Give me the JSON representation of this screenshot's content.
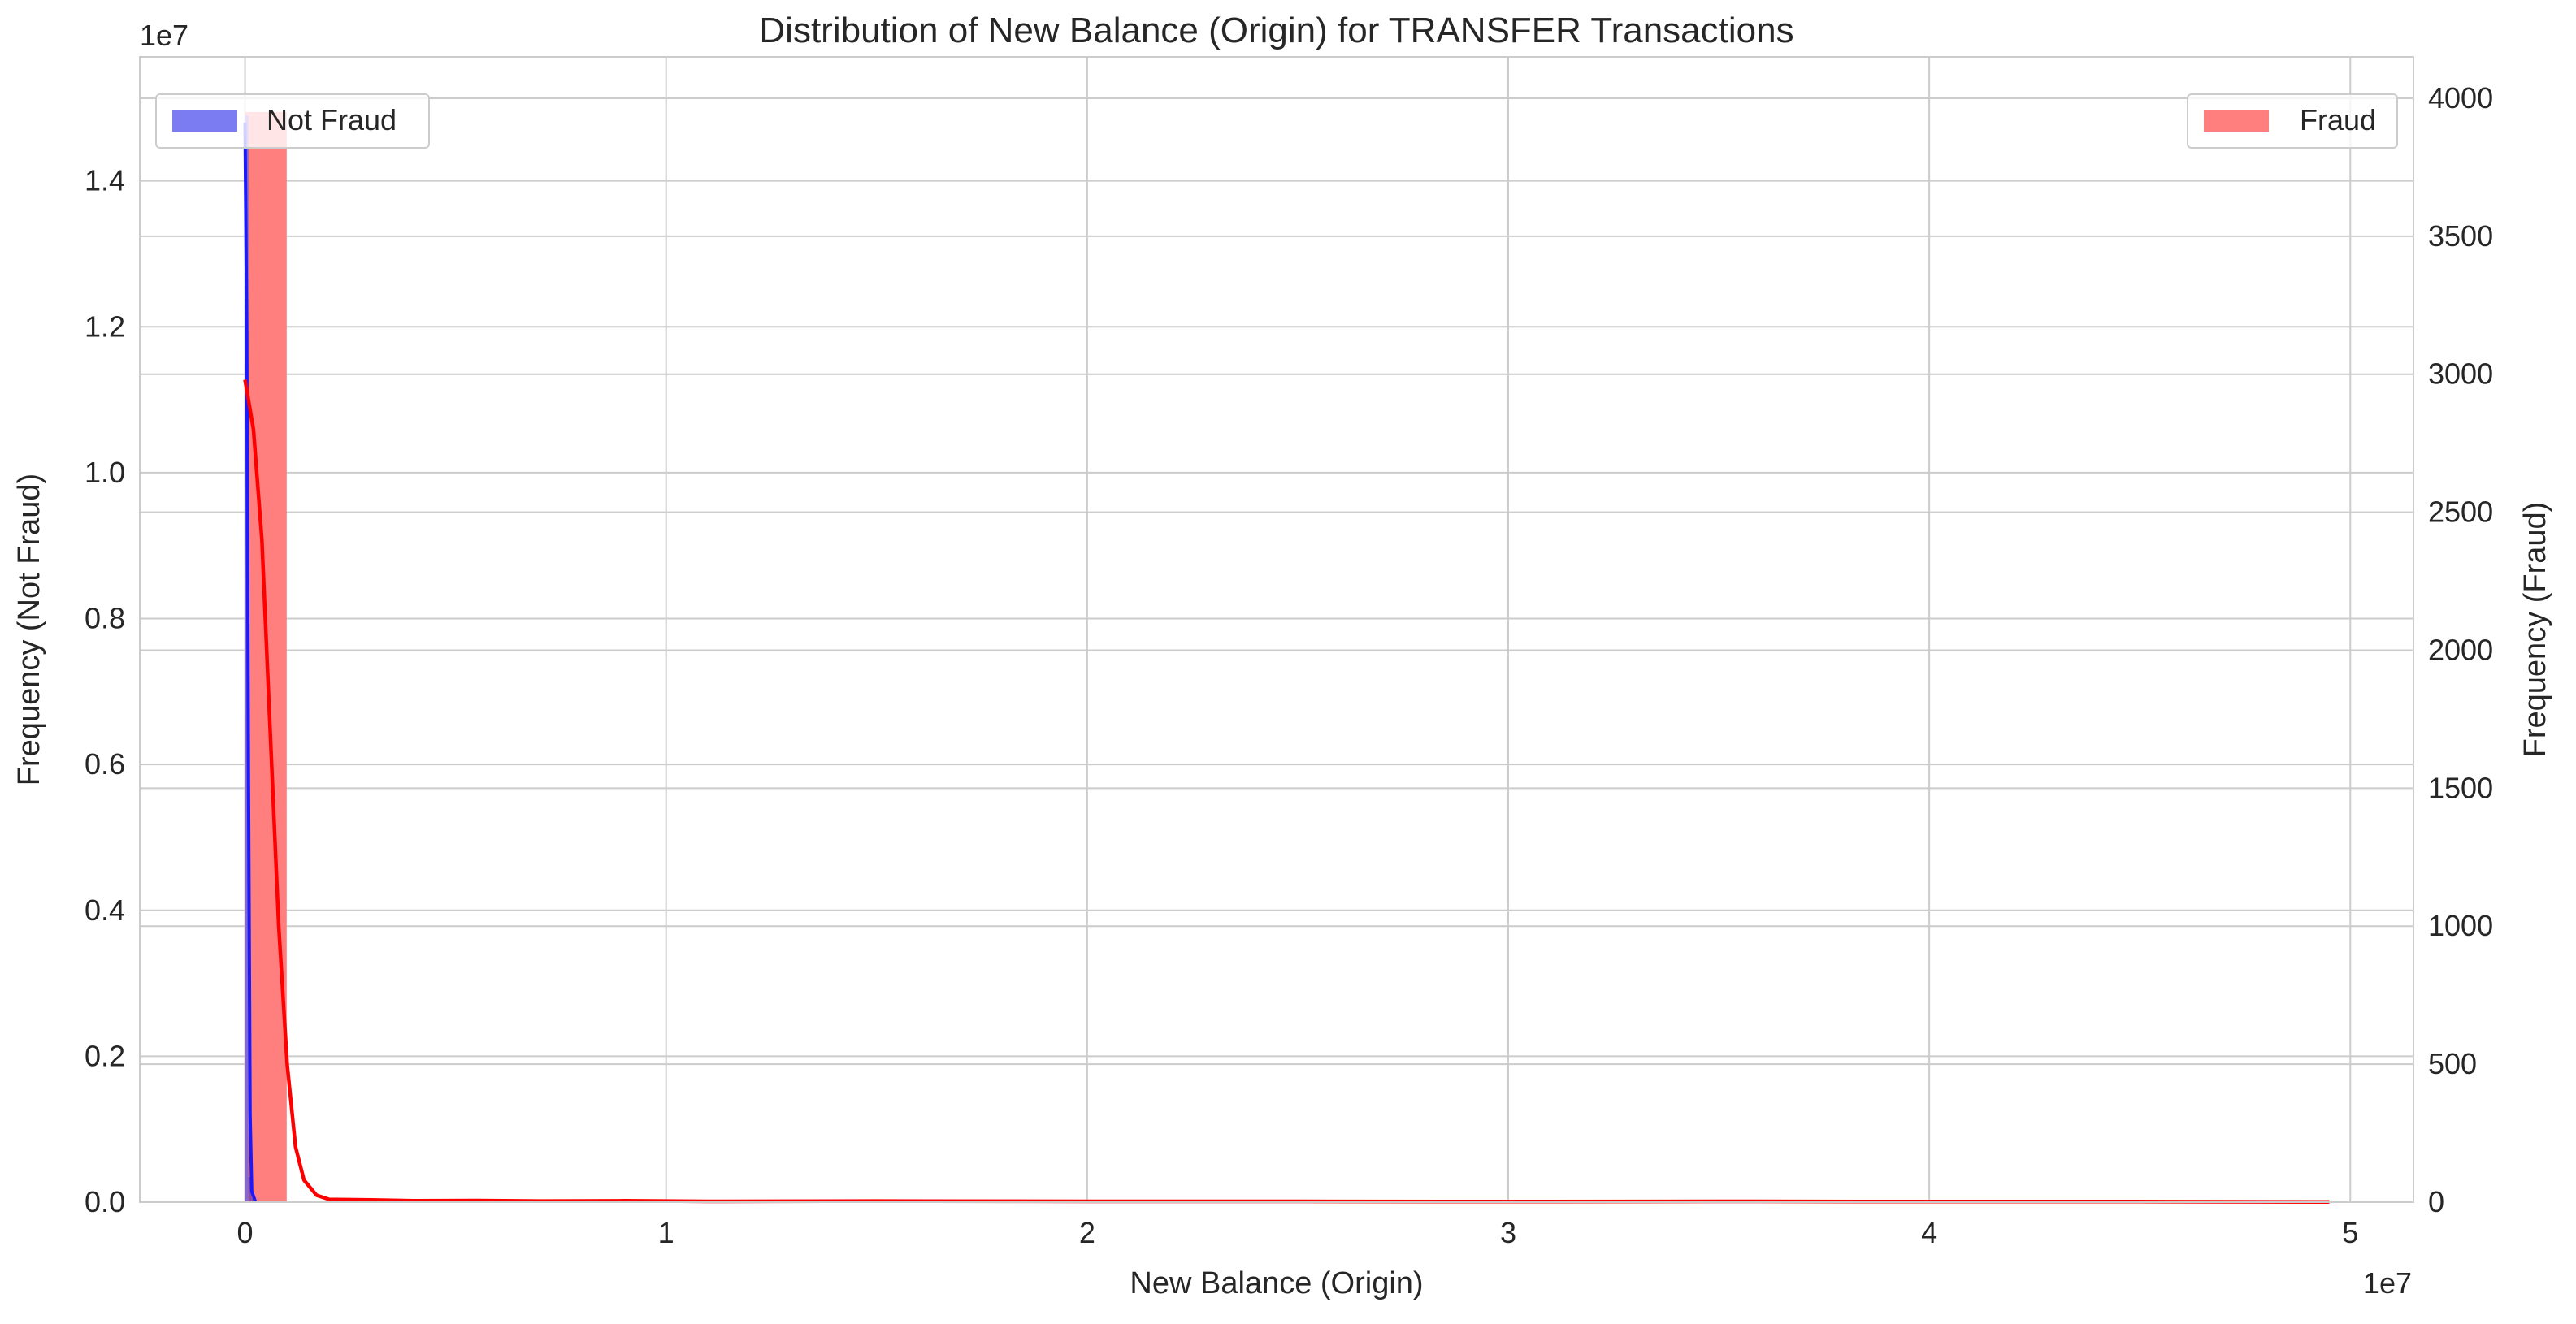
{
  "chart_data": {
    "type": "histogram",
    "title": "Distribution of New Balance (Origin) for TRANSFER Transactions",
    "xlabel": "New Balance (Origin)",
    "ylabel_left": "Frequency (Not Fraud)",
    "ylabel_right": "Frequency (Fraud)",
    "x_offset_label": "1e7",
    "y_left_offset_label": "1e7",
    "xlim": [
      -2500000,
      51500000
    ],
    "ylim_left": [
      0,
      15700000
    ],
    "ylim_right": [
      0,
      4150
    ],
    "x_ticks": [
      0,
      10000000,
      20000000,
      30000000,
      40000000,
      50000000
    ],
    "x_tick_labels": [
      "0",
      "1",
      "2",
      "3",
      "4",
      "5"
    ],
    "y_left_ticks": [
      0,
      2000000,
      4000000,
      6000000,
      8000000,
      10000000,
      12000000,
      14000000
    ],
    "y_left_tick_labels": [
      "0.0",
      "0.2",
      "0.4",
      "0.6",
      "0.8",
      "1.0",
      "1.2",
      "1.4"
    ],
    "y_right_ticks": [
      0,
      500,
      1000,
      1500,
      2000,
      2500,
      3000,
      3500,
      4000
    ],
    "y_right_tick_labels": [
      "0",
      "500",
      "1000",
      "1500",
      "2000",
      "2500",
      "3000",
      "3500",
      "4000"
    ],
    "grid": true,
    "legends": [
      {
        "label": "Not Fraud",
        "color": "#7b7bf2",
        "placement": "upper-left"
      },
      {
        "label": "Fraud",
        "color": "#ff7f7f",
        "placement": "upper-right"
      }
    ],
    "series": [
      {
        "name": "Not Fraud",
        "axis": "left",
        "color": "#8080f8",
        "bins": [
          {
            "x0": 0,
            "x1": 80000,
            "count": 14900000
          },
          {
            "x0": 80000,
            "x1": 160000,
            "count": 350000
          },
          {
            "x0": 160000,
            "x1": 250000,
            "count": 60000
          }
        ],
        "kde": [
          {
            "x": 0,
            "y": 14800000
          },
          {
            "x": 40000,
            "y": 12000000
          },
          {
            "x": 80000,
            "y": 6000000
          },
          {
            "x": 120000,
            "y": 1200000
          },
          {
            "x": 160000,
            "y": 150000
          },
          {
            "x": 250000,
            "y": 0
          }
        ]
      },
      {
        "name": "Fraud",
        "axis": "right",
        "color": "#ff7f7f",
        "bins": [
          {
            "x0": 0,
            "x1": 990000,
            "count": 3950
          },
          {
            "x0": 990000,
            "x1": 1980000,
            "count": 0
          },
          {
            "x0": 1980000,
            "x1": 49500000,
            "count": 0
          }
        ],
        "kde": [
          {
            "x": 0,
            "y": 2980
          },
          {
            "x": 200000,
            "y": 2800
          },
          {
            "x": 400000,
            "y": 2400
          },
          {
            "x": 600000,
            "y": 1700
          },
          {
            "x": 800000,
            "y": 1000
          },
          {
            "x": 1000000,
            "y": 500
          },
          {
            "x": 1200000,
            "y": 200
          },
          {
            "x": 1400000,
            "y": 80
          },
          {
            "x": 1700000,
            "y": 25
          },
          {
            "x": 2000000,
            "y": 10
          },
          {
            "x": 3000000,
            "y": 8
          },
          {
            "x": 4000000,
            "y": 5
          },
          {
            "x": 5500000,
            "y": 6
          },
          {
            "x": 7000000,
            "y": 4
          },
          {
            "x": 9000000,
            "y": 5
          },
          {
            "x": 11000000,
            "y": 3
          },
          {
            "x": 15000000,
            "y": 4
          },
          {
            "x": 20000000,
            "y": 3
          },
          {
            "x": 25000000,
            "y": 3
          },
          {
            "x": 30000000,
            "y": 2
          },
          {
            "x": 35000000,
            "y": 3
          },
          {
            "x": 40000000,
            "y": 2
          },
          {
            "x": 45000000,
            "y": 2
          },
          {
            "x": 49500000,
            "y": 1
          }
        ]
      }
    ]
  }
}
